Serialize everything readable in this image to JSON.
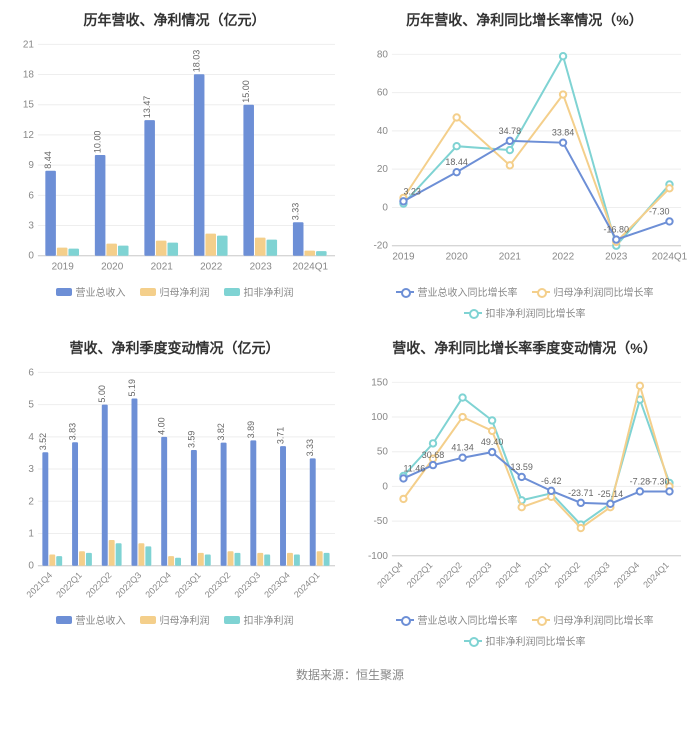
{
  "source_text": "数据来源：恒生聚源",
  "colors": {
    "series1": "#6d8fd6",
    "series2": "#f4cf8b",
    "series3": "#7fd3d3",
    "grid": "#eeeeee",
    "axis": "#cccccc",
    "text": "#888888",
    "label": "#666666"
  },
  "chart_a": {
    "title": "历年营收、净利情况（亿元）",
    "type": "bar",
    "categories": [
      "2019",
      "2020",
      "2021",
      "2022",
      "2023",
      "2024Q1"
    ],
    "series": [
      {
        "name": "营业总收入",
        "color": "#6d8fd6",
        "values": [
          8.44,
          10.0,
          13.47,
          18.03,
          15.0,
          3.33
        ],
        "show_labels": true
      },
      {
        "name": "归母净利润",
        "color": "#f4cf8b",
        "values": [
          0.8,
          1.2,
          1.5,
          2.2,
          1.8,
          0.5
        ],
        "show_labels": false
      },
      {
        "name": "扣非净利润",
        "color": "#7fd3d3",
        "values": [
          0.7,
          1.0,
          1.3,
          2.0,
          1.6,
          0.45
        ],
        "show_labels": false
      }
    ],
    "y": {
      "min": 0,
      "max": 21,
      "step": 3
    },
    "label_fontsize": 9,
    "rotate_x": false
  },
  "chart_b": {
    "title": "历年营收、净利同比增长率情况（%）",
    "type": "line",
    "categories": [
      "2019",
      "2020",
      "2021",
      "2022",
      "2023",
      "2024Q1"
    ],
    "series": [
      {
        "name": "营业总收入同比增长率",
        "color": "#6d8fd6",
        "values": [
          3.23,
          18.44,
          34.78,
          33.84,
          -16.8,
          -7.3
        ]
      },
      {
        "name": "归母净利润同比增长率",
        "color": "#f4cf8b",
        "values": [
          5,
          47,
          22,
          59,
          -18,
          10
        ]
      },
      {
        "name": "扣非净利润同比增长率",
        "color": "#7fd3d3",
        "values": [
          2,
          32,
          30,
          79,
          -20,
          12
        ]
      }
    ],
    "y": {
      "min": -20,
      "max": 80,
      "step": 20
    },
    "labels": [
      {
        "cat": "2019",
        "text": "3.23",
        "y": 3.23
      },
      {
        "cat": "2020",
        "text": "18.44",
        "y": 18.44
      },
      {
        "cat": "2021",
        "text": "34.78",
        "y": 34.78
      },
      {
        "cat": "2022",
        "text": "33.84",
        "y": 33.84
      },
      {
        "cat": "2023",
        "text": "-16.80",
        "y": -16.8
      },
      {
        "cat": "2024Q1",
        "text": "-7.30",
        "y": -7.3
      }
    ],
    "rotate_x": false
  },
  "chart_c": {
    "title": "营收、净利季度变动情况（亿元）",
    "type": "bar",
    "categories": [
      "2021Q4",
      "2022Q1",
      "2022Q2",
      "2022Q3",
      "2022Q4",
      "2023Q1",
      "2023Q2",
      "2023Q3",
      "2023Q4",
      "2024Q1"
    ],
    "series": [
      {
        "name": "营业总收入",
        "color": "#6d8fd6",
        "values": [
          3.52,
          3.83,
          5.0,
          5.19,
          4.0,
          3.59,
          3.82,
          3.89,
          3.71,
          3.33
        ],
        "show_labels": true
      },
      {
        "name": "归母净利润",
        "color": "#f4cf8b",
        "values": [
          0.35,
          0.45,
          0.8,
          0.7,
          0.3,
          0.4,
          0.45,
          0.4,
          0.4,
          0.45
        ],
        "show_labels": false
      },
      {
        "name": "扣非净利润",
        "color": "#7fd3d3",
        "values": [
          0.3,
          0.4,
          0.7,
          0.6,
          0.25,
          0.35,
          0.4,
          0.35,
          0.35,
          0.4
        ],
        "show_labels": false
      }
    ],
    "y": {
      "min": 0,
      "max": 6,
      "step": 1
    },
    "label_fontsize": 9,
    "rotate_x": true
  },
  "chart_d": {
    "title": "营收、净利同比增长率季度变动情况（%）",
    "type": "line",
    "categories": [
      "2021Q4",
      "2022Q1",
      "2022Q2",
      "2022Q3",
      "2022Q4",
      "2023Q1",
      "2023Q2",
      "2023Q3",
      "2023Q4",
      "2024Q1"
    ],
    "series": [
      {
        "name": "营业总收入同比增长率",
        "color": "#6d8fd6",
        "values": [
          11.46,
          30.68,
          41.34,
          49.4,
          13.59,
          -6.42,
          -23.71,
          -25.14,
          -7.28,
          -7.3
        ]
      },
      {
        "name": "归母净利润同比增长率",
        "color": "#f4cf8b",
        "values": [
          -18,
          40,
          100,
          80,
          -30,
          -15,
          -60,
          -30,
          145,
          0
        ]
      },
      {
        "name": "扣非净利润同比增长率",
        "color": "#7fd3d3",
        "values": [
          15,
          62,
          128,
          95,
          -20,
          -10,
          -55,
          -25,
          125,
          5
        ]
      }
    ],
    "y": {
      "min": -100,
      "max": 150,
      "step": 50
    },
    "labels": [
      {
        "cat": "2021Q4",
        "text": "11.46",
        "y": 11.46
      },
      {
        "cat": "2022Q1",
        "text": "30.68",
        "y": 30.68
      },
      {
        "cat": "2022Q2",
        "text": "41.34",
        "y": 41.34
      },
      {
        "cat": "2022Q3",
        "text": "49.40",
        "y": 49.4
      },
      {
        "cat": "2022Q4",
        "text": "13.59",
        "y": 13.59
      },
      {
        "cat": "2023Q1",
        "text": "-6.42",
        "y": -6.42
      },
      {
        "cat": "2023Q2",
        "text": "-23.71",
        "y": -23.71
      },
      {
        "cat": "2023Q3",
        "text": "-25.14",
        "y": -25.14
      },
      {
        "cat": "2023Q4",
        "text": "-7.28",
        "y": -7.28
      },
      {
        "cat": "2024Q1",
        "text": "-7.30",
        "y": -7.3
      }
    ],
    "rotate_x": true
  }
}
